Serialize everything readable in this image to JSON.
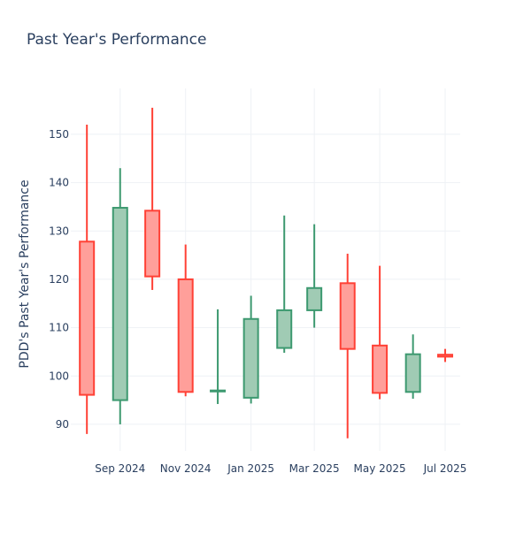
{
  "chart_data": {
    "type": "candlestick",
    "title": "Past Year's Performance",
    "xlabel": "",
    "ylabel": "PDD's Past Year's Performance",
    "ylim": [
      84.5,
      159.5
    ],
    "y_ticks": [
      90,
      100,
      110,
      120,
      130,
      140,
      150
    ],
    "x_ticks": [
      "Sep 2024",
      "Nov 2024",
      "Jan 2025",
      "Mar 2025",
      "May 2025",
      "Jul 2025"
    ],
    "grid": true,
    "legend": "none",
    "colors": {
      "increasing_line": "#3d9970",
      "increasing_fill": "#a0cbb4",
      "decreasing_line": "#ff4136",
      "decreasing_fill": "#ff9f9a",
      "grid": "#eef1f5",
      "text": "#2a3f5f"
    },
    "candles": [
      {
        "date": "2024-08",
        "open": 127.8,
        "high": 152.0,
        "low": 88.0,
        "close": 96.1
      },
      {
        "date": "2024-09",
        "open": 95.0,
        "high": 143.0,
        "low": 90.0,
        "close": 134.8
      },
      {
        "date": "2024-10",
        "open": 134.2,
        "high": 155.5,
        "low": 117.8,
        "close": 120.6
      },
      {
        "date": "2024-11",
        "open": 120.0,
        "high": 127.2,
        "low": 95.8,
        "close": 96.7
      },
      {
        "date": "2024-12",
        "open": 96.8,
        "high": 113.8,
        "low": 94.2,
        "close": 97.0
      },
      {
        "date": "2025-01",
        "open": 95.5,
        "high": 116.6,
        "low": 94.3,
        "close": 111.8
      },
      {
        "date": "2025-02",
        "open": 105.8,
        "high": 133.2,
        "low": 104.8,
        "close": 113.6
      },
      {
        "date": "2025-03",
        "open": 113.6,
        "high": 131.4,
        "low": 110.0,
        "close": 118.2
      },
      {
        "date": "2025-04",
        "open": 119.2,
        "high": 125.3,
        "low": 87.1,
        "close": 105.6
      },
      {
        "date": "2025-05",
        "open": 106.3,
        "high": 122.8,
        "low": 95.2,
        "close": 96.5
      },
      {
        "date": "2025-06",
        "open": 96.7,
        "high": 108.6,
        "low": 95.3,
        "close": 104.5
      },
      {
        "date": "2025-07",
        "open": 104.4,
        "high": 105.6,
        "low": 102.9,
        "close": 104.0
      }
    ]
  }
}
